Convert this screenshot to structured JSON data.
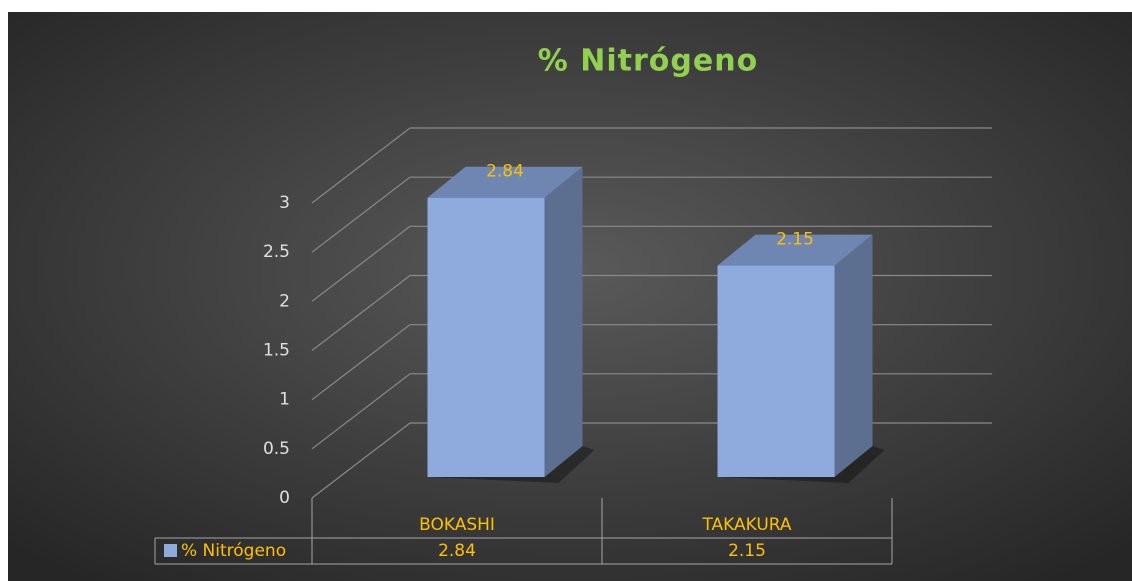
{
  "chart_data": {
    "type": "bar",
    "title": "% Nitrógeno",
    "categories": [
      "BOKASHI",
      "TAKAKURA"
    ],
    "series": [
      {
        "name": "% Nitrógeno",
        "color": "#8faadc",
        "values": [
          2.84,
          2.15
        ]
      }
    ],
    "ylim": [
      0,
      3
    ],
    "yticks": [
      0,
      0.5,
      1,
      1.5,
      2,
      2.5,
      3
    ],
    "grid": true
  }
}
